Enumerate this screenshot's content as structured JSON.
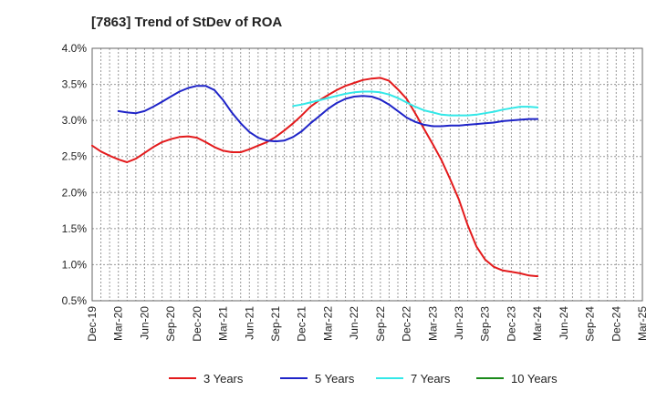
{
  "chart_data": {
    "type": "line",
    "title": "[7863]  Trend of StDev of ROA",
    "xlabel": "",
    "ylabel": "",
    "ylim": [
      0.5,
      4.0
    ],
    "y_ticks": [
      "4.0%",
      "3.5%",
      "3.0%",
      "2.5%",
      "2.0%",
      "1.5%",
      "1.0%",
      "0.5%"
    ],
    "y_tick_values": [
      4.0,
      3.5,
      3.0,
      2.5,
      2.0,
      1.5,
      1.0,
      0.5
    ],
    "x_tick_labels": [
      "Dec-19",
      "Mar-20",
      "Jun-20",
      "Sep-20",
      "Dec-20",
      "Mar-21",
      "Jun-21",
      "Sep-21",
      "Dec-21",
      "Mar-22",
      "Jun-22",
      "Sep-22",
      "Dec-22",
      "Mar-23",
      "Jun-23",
      "Sep-23",
      "Dec-23",
      "Mar-24",
      "Jun-24",
      "Sep-24",
      "Dec-24",
      "Mar-25"
    ],
    "grid": true,
    "legend_position": "bottom",
    "series": [
      {
        "name": "3 Years",
        "color": "#e31a1c",
        "points": [
          [
            0,
            2.65
          ],
          [
            0.33,
            2.57
          ],
          [
            0.67,
            2.51
          ],
          [
            1,
            2.46
          ],
          [
            1.33,
            2.42
          ],
          [
            1.67,
            2.47
          ],
          [
            2,
            2.55
          ],
          [
            2.33,
            2.63
          ],
          [
            2.67,
            2.7
          ],
          [
            3,
            2.74
          ],
          [
            3.33,
            2.77
          ],
          [
            3.67,
            2.78
          ],
          [
            4,
            2.76
          ],
          [
            4.33,
            2.7
          ],
          [
            4.67,
            2.63
          ],
          [
            5,
            2.58
          ],
          [
            5.33,
            2.56
          ],
          [
            5.67,
            2.56
          ],
          [
            6,
            2.6
          ],
          [
            6.33,
            2.65
          ],
          [
            6.67,
            2.7
          ],
          [
            7,
            2.77
          ],
          [
            7.33,
            2.86
          ],
          [
            7.67,
            2.96
          ],
          [
            8,
            3.07
          ],
          [
            8.33,
            3.19
          ],
          [
            8.67,
            3.28
          ],
          [
            9,
            3.35
          ],
          [
            9.33,
            3.42
          ],
          [
            9.67,
            3.48
          ],
          [
            10,
            3.52
          ],
          [
            10.33,
            3.56
          ],
          [
            10.67,
            3.58
          ],
          [
            11,
            3.59
          ],
          [
            11.33,
            3.55
          ],
          [
            11.67,
            3.43
          ],
          [
            12,
            3.3
          ],
          [
            12.33,
            3.1
          ],
          [
            12.67,
            2.88
          ],
          [
            13,
            2.67
          ],
          [
            13.33,
            2.45
          ],
          [
            13.67,
            2.18
          ],
          [
            14,
            1.9
          ],
          [
            14.33,
            1.55
          ],
          [
            14.67,
            1.25
          ],
          [
            15,
            1.07
          ],
          [
            15.33,
            0.97
          ],
          [
            15.67,
            0.92
          ],
          [
            16,
            0.9
          ],
          [
            16.33,
            0.88
          ],
          [
            16.67,
            0.85
          ],
          [
            17,
            0.84
          ]
        ]
      },
      {
        "name": "5 Years",
        "color": "#1f24c8",
        "points": [
          [
            1,
            3.13
          ],
          [
            1.33,
            3.11
          ],
          [
            1.67,
            3.1
          ],
          [
            2,
            3.13
          ],
          [
            2.33,
            3.19
          ],
          [
            2.67,
            3.26
          ],
          [
            3,
            3.33
          ],
          [
            3.33,
            3.4
          ],
          [
            3.67,
            3.45
          ],
          [
            4,
            3.48
          ],
          [
            4.33,
            3.48
          ],
          [
            4.67,
            3.42
          ],
          [
            5,
            3.28
          ],
          [
            5.33,
            3.11
          ],
          [
            5.67,
            2.96
          ],
          [
            6,
            2.84
          ],
          [
            6.33,
            2.76
          ],
          [
            6.67,
            2.72
          ],
          [
            7,
            2.71
          ],
          [
            7.33,
            2.72
          ],
          [
            7.67,
            2.77
          ],
          [
            8,
            2.85
          ],
          [
            8.33,
            2.96
          ],
          [
            8.67,
            3.06
          ],
          [
            9,
            3.16
          ],
          [
            9.33,
            3.24
          ],
          [
            9.67,
            3.3
          ],
          [
            10,
            3.33
          ],
          [
            10.33,
            3.34
          ],
          [
            10.67,
            3.33
          ],
          [
            11,
            3.29
          ],
          [
            11.33,
            3.22
          ],
          [
            11.67,
            3.13
          ],
          [
            12,
            3.04
          ],
          [
            12.33,
            2.98
          ],
          [
            12.67,
            2.94
          ],
          [
            13,
            2.92
          ],
          [
            13.33,
            2.92
          ],
          [
            13.67,
            2.93
          ],
          [
            14,
            2.93
          ],
          [
            14.33,
            2.94
          ],
          [
            14.67,
            2.95
          ],
          [
            15,
            2.96
          ],
          [
            15.33,
            2.97
          ],
          [
            15.67,
            2.99
          ],
          [
            16,
            3.0
          ],
          [
            16.33,
            3.01
          ],
          [
            16.67,
            3.02
          ],
          [
            17,
            3.02
          ]
        ]
      },
      {
        "name": "7 Years",
        "color": "#33e8e8",
        "points": [
          [
            7.67,
            3.2
          ],
          [
            8,
            3.22
          ],
          [
            8.33,
            3.25
          ],
          [
            8.67,
            3.28
          ],
          [
            9,
            3.31
          ],
          [
            9.33,
            3.34
          ],
          [
            9.67,
            3.37
          ],
          [
            10,
            3.39
          ],
          [
            10.33,
            3.4
          ],
          [
            10.67,
            3.4
          ],
          [
            11,
            3.39
          ],
          [
            11.33,
            3.36
          ],
          [
            11.67,
            3.31
          ],
          [
            12,
            3.25
          ],
          [
            12.33,
            3.19
          ],
          [
            12.67,
            3.14
          ],
          [
            13,
            3.11
          ],
          [
            13.33,
            3.08
          ],
          [
            13.67,
            3.07
          ],
          [
            14,
            3.07
          ],
          [
            14.33,
            3.07
          ],
          [
            14.67,
            3.08
          ],
          [
            15,
            3.1
          ],
          [
            15.33,
            3.12
          ],
          [
            15.67,
            3.15
          ],
          [
            16,
            3.17
          ],
          [
            16.33,
            3.19
          ],
          [
            16.67,
            3.19
          ],
          [
            17,
            3.18
          ]
        ]
      },
      {
        "name": "10 Years",
        "color": "#1a8a1a",
        "points": []
      }
    ]
  }
}
